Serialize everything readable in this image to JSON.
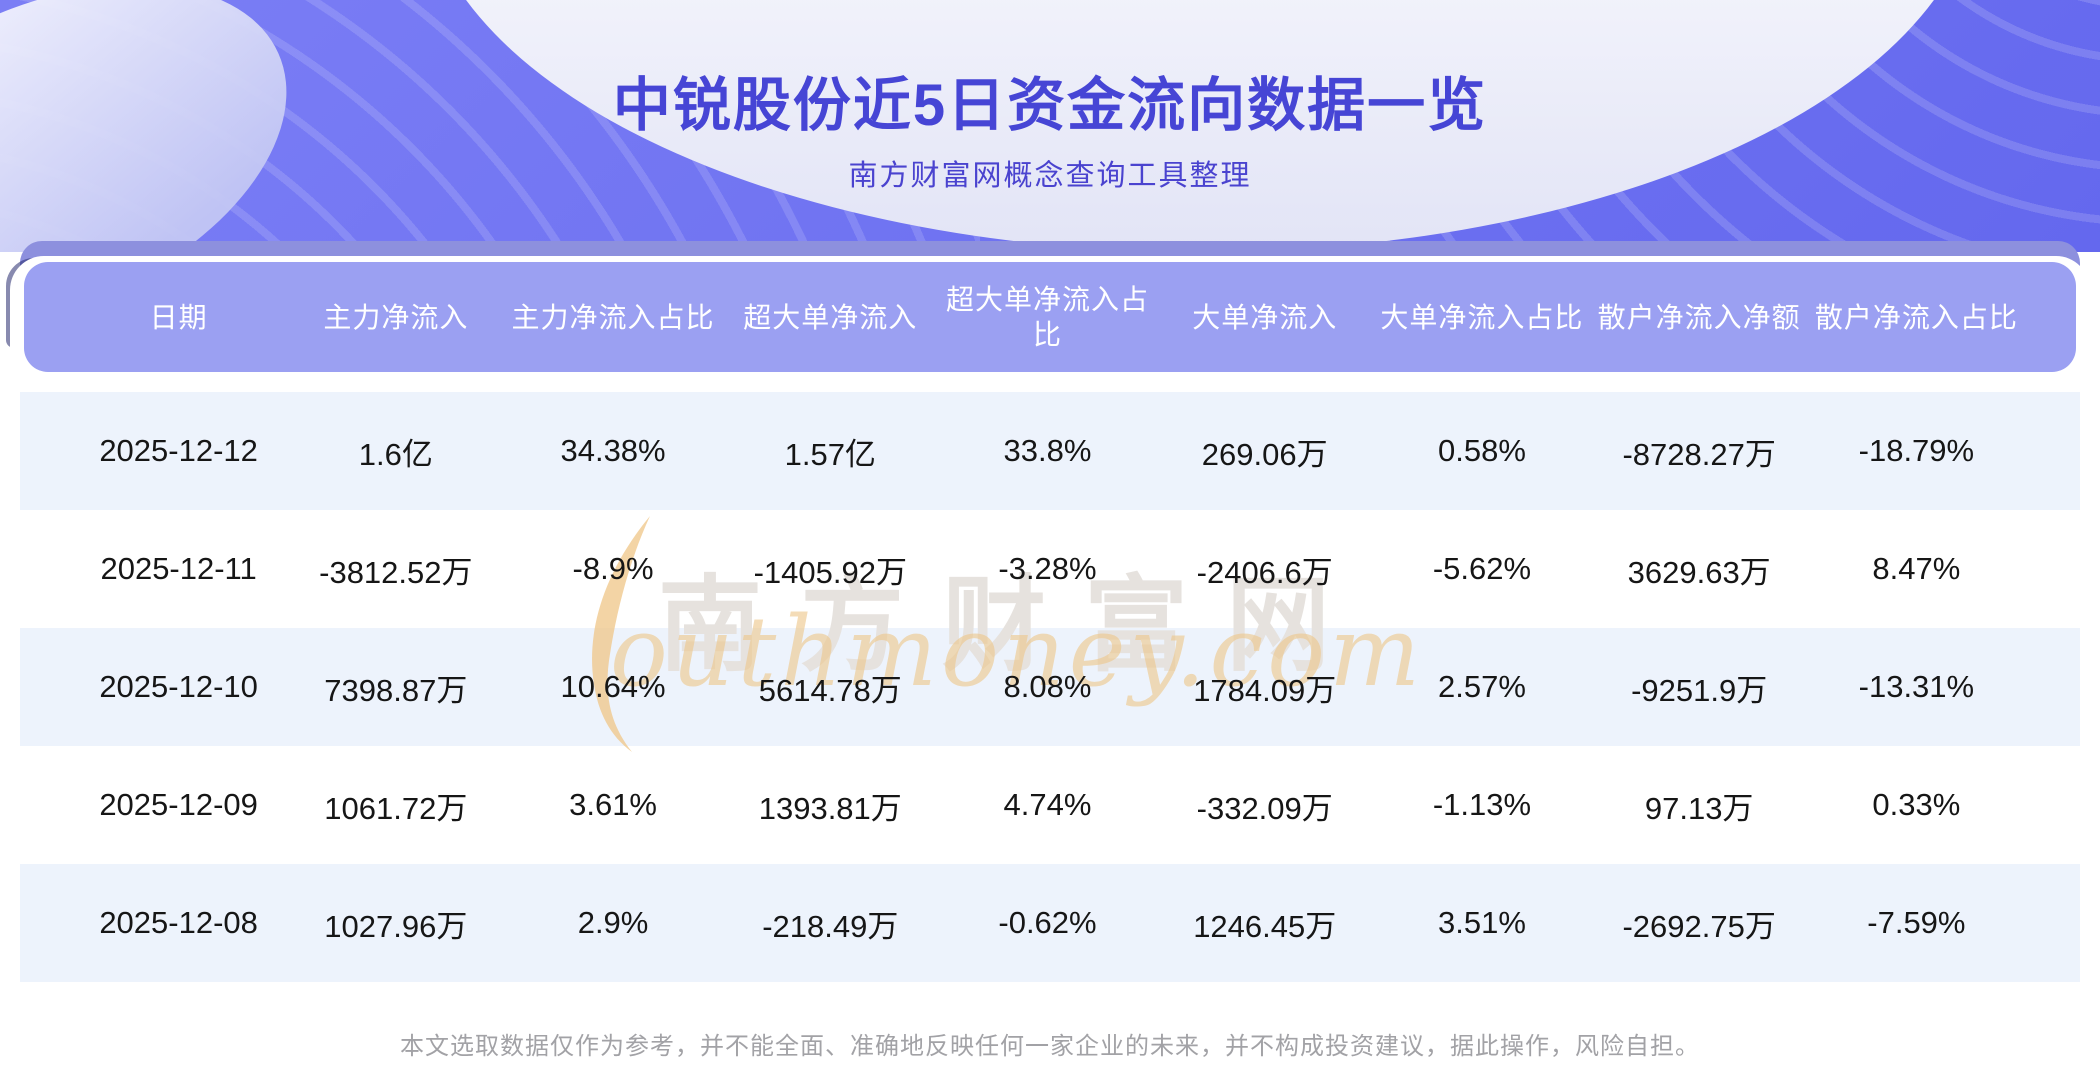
{
  "header": {
    "title": "中锐股份近5日资金流向数据一览",
    "subtitle": "南方财富网概念查询工具整理"
  },
  "table": {
    "columns": [
      "日期",
      "主力净流入",
      "主力净流入占比",
      "超大单净流入",
      "超大单净流入占比",
      "大单净流入",
      "大单净流入占比",
      "散户净流入净额",
      "散户净流入占比"
    ],
    "rows": [
      [
        "2025-12-12",
        "1.6亿",
        "34.38%",
        "1.57亿",
        "33.8%",
        "269.06万",
        "0.58%",
        "-8728.27万",
        "-18.79%"
      ],
      [
        "2025-12-11",
        "-3812.52万",
        "-8.9%",
        "-1405.92万",
        "-3.28%",
        "-2406.6万",
        "-5.62%",
        "3629.63万",
        "8.47%"
      ],
      [
        "2025-12-10",
        "7398.87万",
        "10.64%",
        "5614.78万",
        "8.08%",
        "1784.09万",
        "2.57%",
        "-9251.9万",
        "-13.31%"
      ],
      [
        "2025-12-09",
        "1061.72万",
        "3.61%",
        "1393.81万",
        "4.74%",
        "-332.09万",
        "-1.13%",
        "97.13万",
        "0.33%"
      ],
      [
        "2025-12-08",
        "1027.96万",
        "2.9%",
        "-218.49万",
        "-0.62%",
        "1246.45万",
        "3.51%",
        "-2692.75万",
        "-7.59%"
      ]
    ]
  },
  "watermark": {
    "cn": "南方财富网",
    "en": "outhmoney.com"
  },
  "footer": {
    "disclaimer": "本文选取数据仅作为参考，并不能全面、准确地反映任何一家企业的未来，并不构成投资建议，据此操作，风险自担。"
  },
  "colors": {
    "hero_purple": "#6f73f0",
    "band_purple": "#8d90de",
    "header_row": "#9ba0f2",
    "alt_row": "#edf3fc",
    "title_blue": "#4645d5",
    "watermark_gold": "#eec88c"
  },
  "chart_data": {
    "type": "table",
    "title": "中锐股份近5日资金流向数据一览",
    "columns": [
      "日期",
      "主力净流入",
      "主力净流入占比",
      "超大单净流入",
      "超大单净流入占比",
      "大单净流入",
      "大单净流入占比",
      "散户净流入净额",
      "散户净流入占比"
    ],
    "rows": [
      [
        "2025-12-12",
        "1.6亿",
        "34.38%",
        "1.57亿",
        "33.8%",
        "269.06万",
        "0.58%",
        "-8728.27万",
        "-18.79%"
      ],
      [
        "2025-12-11",
        "-3812.52万",
        "-8.9%",
        "-1405.92万",
        "-3.28%",
        "-2406.6万",
        "-5.62%",
        "3629.63万",
        "8.47%"
      ],
      [
        "2025-12-10",
        "7398.87万",
        "10.64%",
        "5614.78万",
        "8.08%",
        "1784.09万",
        "2.57%",
        "-9251.9万",
        "-13.31%"
      ],
      [
        "2025-12-09",
        "1061.72万",
        "3.61%",
        "1393.81万",
        "4.74%",
        "-332.09万",
        "-1.13%",
        "97.13万",
        "0.33%"
      ],
      [
        "2025-12-08",
        "1027.96万",
        "2.9%",
        "-218.49万",
        "-0.62%",
        "1246.45万",
        "3.51%",
        "-2692.75万",
        "-7.59%"
      ]
    ]
  }
}
